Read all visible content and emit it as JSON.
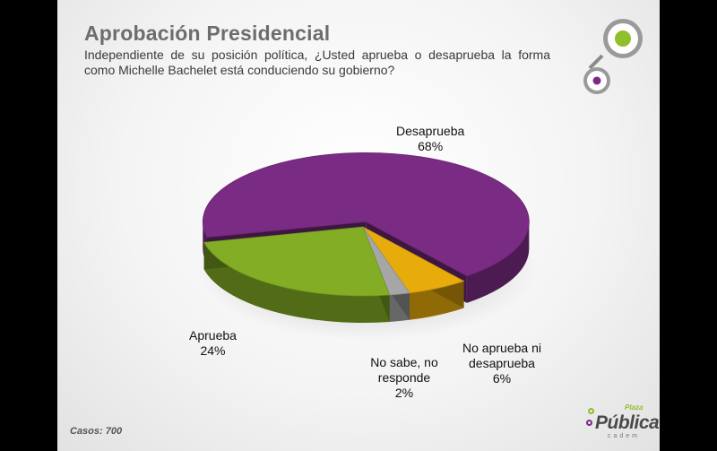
{
  "chart_data": {
    "type": "pie",
    "title": "Aprobación Presidencial",
    "subtitle": "Independiente de su posición política, ¿Usted aprueba o desaprueba la forma como Michelle Bachelet está conduciendo su gobierno?",
    "slices": [
      {
        "label": "Desaprueba",
        "value": 68,
        "display": "68%",
        "color": "#7a2b83"
      },
      {
        "label": "No aprueba ni desaprueba",
        "value": 6,
        "display": "6%",
        "color": "#e8ab0c"
      },
      {
        "label": "No sabe, no responde",
        "value": 2,
        "display": "2%",
        "color": "#a6a6a6"
      },
      {
        "label": "Aprueba",
        "value": 24,
        "display": "24%",
        "color": "#82ad24"
      }
    ]
  },
  "footer": {
    "cases": "Casos: 700"
  },
  "brand": {
    "main": "Pública",
    "small": "Plaza",
    "sub": "cadem"
  },
  "colors": {
    "accent_green": "#8fbf2a",
    "accent_purple": "#7a2b83"
  }
}
